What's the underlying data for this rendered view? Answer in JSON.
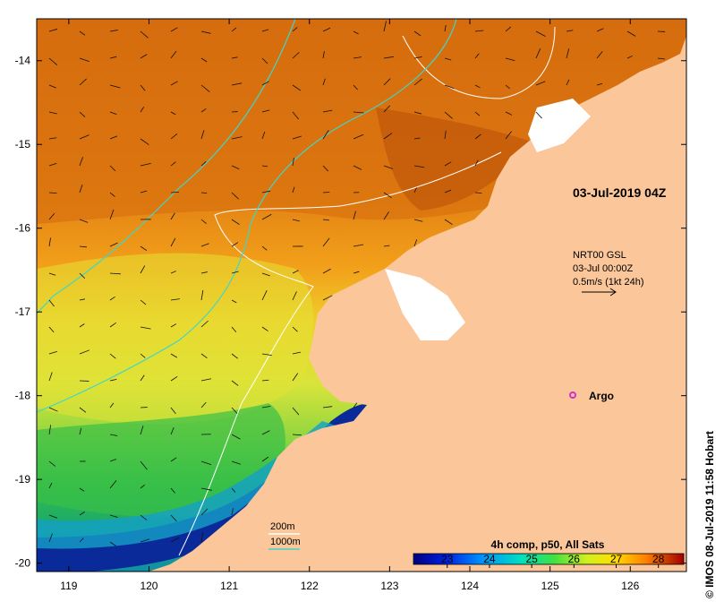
{
  "map": {
    "timestamp_label": "03-Jul-2019 04Z",
    "current_legend": {
      "line1": "NRT00 GSL",
      "line2": "03-Jul 00:00Z",
      "line3": "0.5m/s (1kt 24h)"
    },
    "argo_label": "Argo",
    "isobath_legend": {
      "label_200": "200m",
      "label_1000": "1000m",
      "color_200": "#ffffff",
      "color_1000": "#3fd6c8"
    },
    "credit": "© IMOS 08-Jul-2019 11:58 Hobart",
    "colors": {
      "land": "#fbc79a",
      "argo_marker": "#cc33cc",
      "vector": "#111111"
    }
  },
  "colorbar": {
    "title": "4h comp, p50, All Sats",
    "ticks": [
      "23",
      "24",
      "25",
      "26",
      "27",
      "28"
    ],
    "range": [
      22.2,
      28.6
    ]
  },
  "axes": {
    "x_ticks": [
      "119",
      "120",
      "121",
      "122",
      "123",
      "124",
      "125",
      "126"
    ],
    "y_ticks": [
      "-14",
      "-15",
      "-16",
      "-17",
      "-18",
      "-19",
      "-20"
    ],
    "lon_range": [
      118.6,
      126.7
    ],
    "lat_range": [
      -13.5,
      -20.1
    ]
  }
}
